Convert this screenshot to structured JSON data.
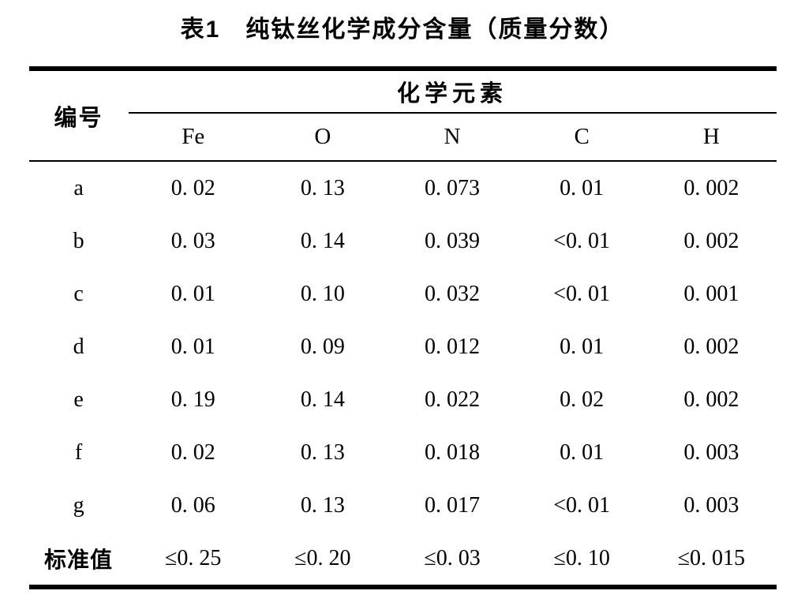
{
  "title": "表1　纯钛丝化学成分含量（质量分数）",
  "table": {
    "id_header": "编号",
    "group_header": "化学元素",
    "element_headers": [
      "Fe",
      "O",
      "N",
      "C",
      "H"
    ],
    "rows": [
      {
        "id": "a",
        "values": [
          "0. 02",
          "0. 13",
          "0. 073",
          "0. 01",
          "0. 002"
        ]
      },
      {
        "id": "b",
        "values": [
          "0. 03",
          "0. 14",
          "0. 039",
          "<0. 01",
          "0. 002"
        ]
      },
      {
        "id": "c",
        "values": [
          "0. 01",
          "0. 10",
          "0. 032",
          "<0. 01",
          "0. 001"
        ]
      },
      {
        "id": "d",
        "values": [
          "0. 01",
          "0. 09",
          "0. 012",
          "0. 01",
          "0. 002"
        ]
      },
      {
        "id": "e",
        "values": [
          "0. 19",
          "0. 14",
          "0. 022",
          "0. 02",
          "0. 002"
        ]
      },
      {
        "id": "f",
        "values": [
          "0. 02",
          "0. 13",
          "0. 018",
          "0. 01",
          "0. 003"
        ]
      },
      {
        "id": "g",
        "values": [
          "0. 06",
          "0. 13",
          "0. 017",
          "<0. 01",
          "0. 003"
        ]
      },
      {
        "id": "标准值",
        "values": [
          "≤0. 25",
          "≤0. 20",
          "≤0. 03",
          "≤0. 10",
          "≤0. 015"
        ]
      }
    ]
  },
  "chart_data": {
    "type": "table",
    "title": "表1 纯钛丝化学成分含量（质量分数）",
    "columns": [
      "编号",
      "Fe",
      "O",
      "N",
      "C",
      "H"
    ],
    "rows": [
      [
        "a",
        "0.02",
        "0.13",
        "0.073",
        "0.01",
        "0.002"
      ],
      [
        "b",
        "0.03",
        "0.14",
        "0.039",
        "<0.01",
        "0.002"
      ],
      [
        "c",
        "0.01",
        "0.10",
        "0.032",
        "<0.01",
        "0.001"
      ],
      [
        "d",
        "0.01",
        "0.09",
        "0.012",
        "0.01",
        "0.002"
      ],
      [
        "e",
        "0.19",
        "0.14",
        "0.022",
        "0.02",
        "0.002"
      ],
      [
        "f",
        "0.02",
        "0.13",
        "0.018",
        "0.01",
        "0.003"
      ],
      [
        "g",
        "0.06",
        "0.13",
        "0.017",
        "<0.01",
        "0.003"
      ],
      [
        "标准值",
        "≤0.25",
        "≤0.20",
        "≤0.03",
        "≤0.10",
        "≤0.015"
      ]
    ]
  }
}
